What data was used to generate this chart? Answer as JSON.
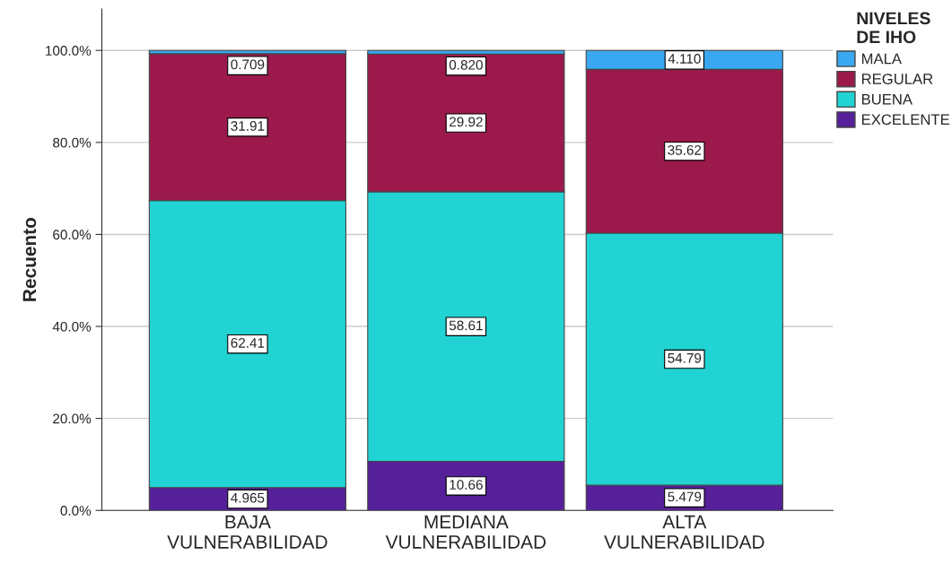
{
  "chart_data": {
    "type": "bar",
    "stacked": true,
    "categories": [
      "BAJA\nVULNERABILIDAD",
      "MEDIANA\nVULNERABILIDAD",
      "ALTA\nVULNERABILIDAD"
    ],
    "series": [
      {
        "name": "EXCELENTE",
        "color": "#56209a",
        "values": [
          4.965,
          10.66,
          5.479
        ],
        "value_labels": [
          "4.965",
          "10.66",
          "5.479"
        ]
      },
      {
        "name": "BUENA",
        "color": "#22d3d3",
        "values": [
          62.41,
          58.61,
          54.79
        ],
        "value_labels": [
          "62.41",
          "58.61",
          "54.79"
        ]
      },
      {
        "name": "REGULAR",
        "color": "#9b1a4b",
        "values": [
          31.91,
          29.92,
          35.62
        ],
        "value_labels": [
          "31.91",
          "29.92",
          "35.62"
        ]
      },
      {
        "name": "MALA",
        "color": "#3aa8f0",
        "values": [
          0.709,
          0.82,
          4.11
        ],
        "value_labels": [
          "0.709",
          "0.820",
          "4.110"
        ]
      }
    ],
    "ylabel": "Recuento",
    "legend_title": "NIVELES\nDE IHO",
    "ylim": [
      0,
      109
    ],
    "yticks": [
      {
        "value": 0,
        "label": "0.0%"
      },
      {
        "value": 20,
        "label": "20.0%"
      },
      {
        "value": 40,
        "label": "40.0%"
      },
      {
        "value": 60,
        "label": "60.0%"
      },
      {
        "value": 80,
        "label": "80.0%"
      },
      {
        "value": 100,
        "label": "100.0%"
      }
    ],
    "grid": "y",
    "legend": "top right"
  }
}
